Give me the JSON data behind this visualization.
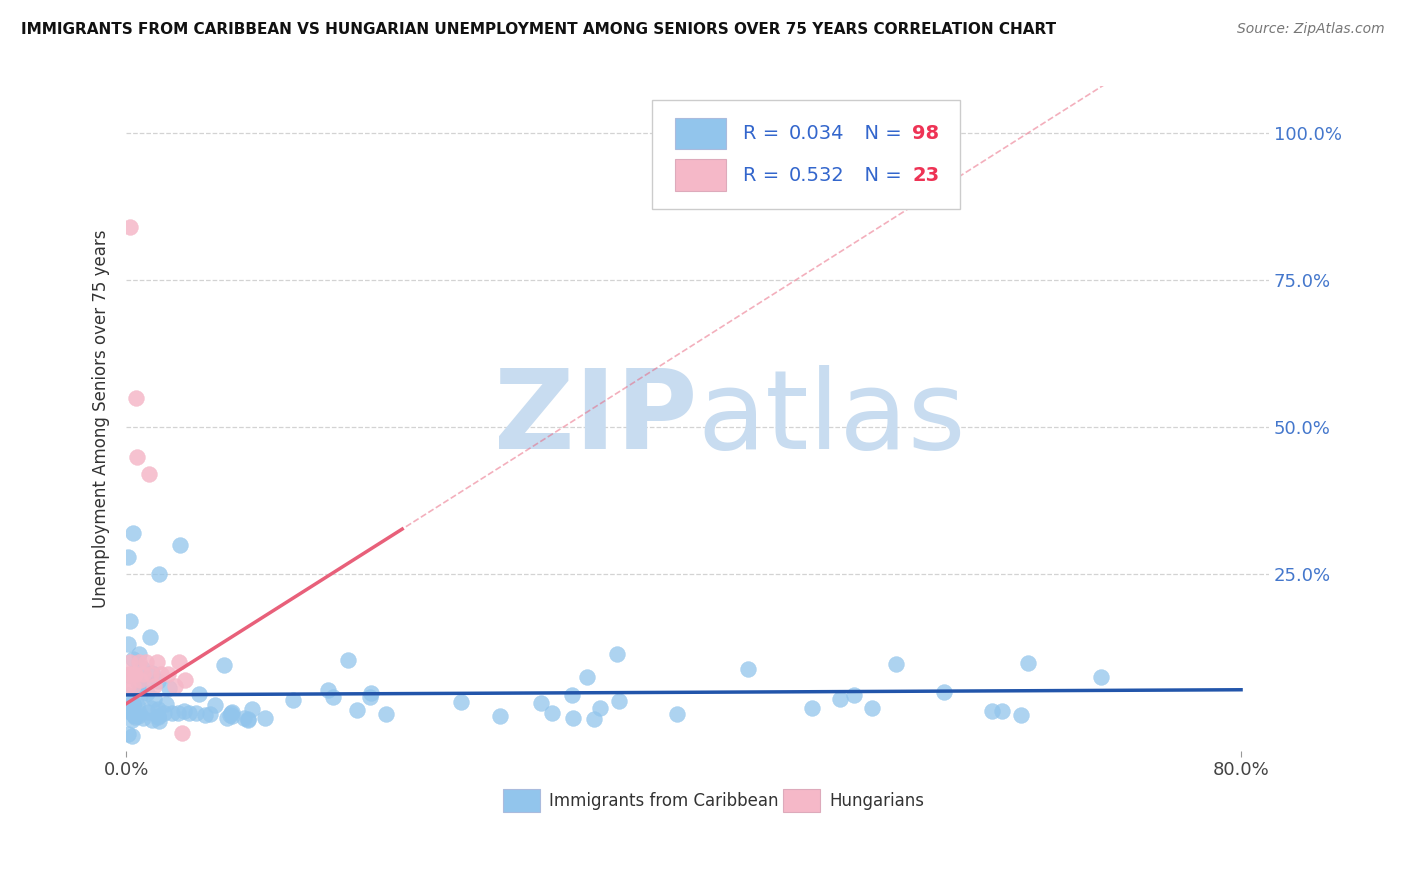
{
  "title": "IMMIGRANTS FROM CARIBBEAN VS HUNGARIAN UNEMPLOYMENT AMONG SENIORS OVER 75 YEARS CORRELATION CHART",
  "source": "Source: ZipAtlas.com",
  "ylabel": "Unemployment Among Seniors over 75 years",
  "xlim": [
    0.0,
    0.82
  ],
  "ylim": [
    -0.05,
    1.08
  ],
  "blue_color": "#92C5EC",
  "pink_color": "#F5B8C8",
  "blue_line_color": "#2255AA",
  "pink_line_color": "#E8607A",
  "blue_r": 0.034,
  "blue_n": 98,
  "pink_r": 0.532,
  "pink_n": 23,
  "background_color": "#ffffff",
  "grid_color": "#C8C8C8",
  "watermark_zip_color": "#D0E4F7",
  "watermark_atlas_color": "#C8DCF0",
  "right_tick_color": "#4477CC",
  "legend_text_color": "#3366CC",
  "legend_n_color": "#EE3355"
}
